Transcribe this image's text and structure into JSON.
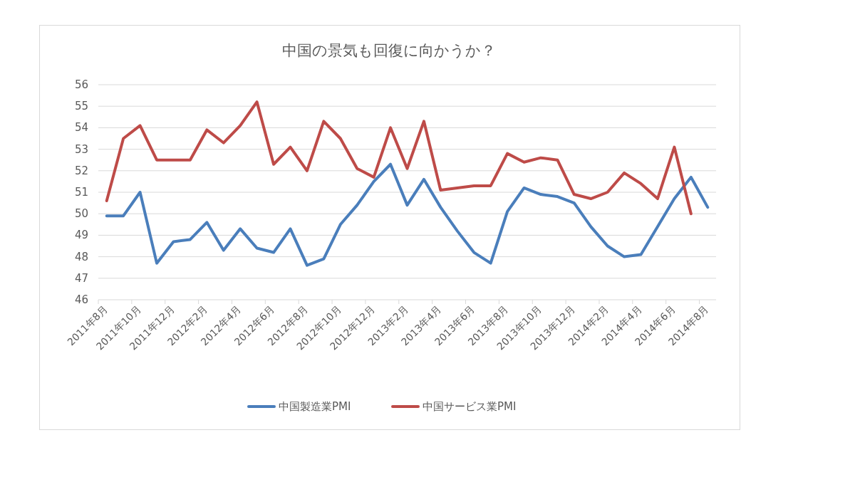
{
  "chart_data": {
    "type": "line",
    "title": "中国の景気も回復に向かうか？",
    "categories": [
      "2011年8月",
      null,
      "2011年10月",
      null,
      "2011年12月",
      null,
      "2012年2月",
      null,
      "2012年4月",
      null,
      "2012年6月",
      null,
      "2012年8月",
      null,
      "2012年10月",
      null,
      "2012年12月",
      null,
      "2013年2月",
      null,
      "2013年4月",
      null,
      "2013年6月",
      null,
      "2013年8月",
      null,
      "2013年10月",
      null,
      "2013年12月",
      null,
      "2014年2月",
      null,
      "2014年4月",
      null,
      "2014年6月",
      null,
      "2014年8月"
    ],
    "series": [
      {
        "name": "中国製造業PMI",
        "color": "#4a7ebb",
        "values": [
          49.9,
          49.9,
          51.0,
          47.7,
          48.7,
          48.8,
          49.6,
          48.3,
          49.3,
          48.4,
          48.2,
          49.3,
          47.6,
          47.9,
          49.5,
          50.4,
          51.5,
          52.3,
          50.4,
          51.6,
          50.3,
          49.2,
          48.2,
          47.7,
          50.1,
          51.2,
          50.9,
          50.8,
          50.5,
          49.4,
          48.5,
          48.0,
          48.1,
          49.4,
          50.7,
          51.7,
          50.3
        ]
      },
      {
        "name": "中国サービス業PMI",
        "color": "#be4b48",
        "values": [
          50.6,
          53.5,
          54.1,
          52.5,
          52.5,
          52.5,
          53.9,
          53.3,
          54.1,
          55.2,
          52.3,
          53.1,
          52.0,
          54.3,
          53.5,
          52.1,
          51.7,
          54.0,
          52.1,
          54.3,
          51.1,
          51.2,
          51.3,
          51.3,
          52.8,
          52.4,
          52.6,
          52.5,
          50.9,
          50.7,
          51.0,
          51.9,
          51.4,
          50.7,
          53.1,
          50.0,
          null
        ]
      }
    ],
    "ylim": [
      46,
      56
    ],
    "yticks": [
      46,
      47,
      48,
      49,
      50,
      51,
      52,
      53,
      54,
      55,
      56
    ],
    "grid": "y",
    "legend": "bottom"
  }
}
